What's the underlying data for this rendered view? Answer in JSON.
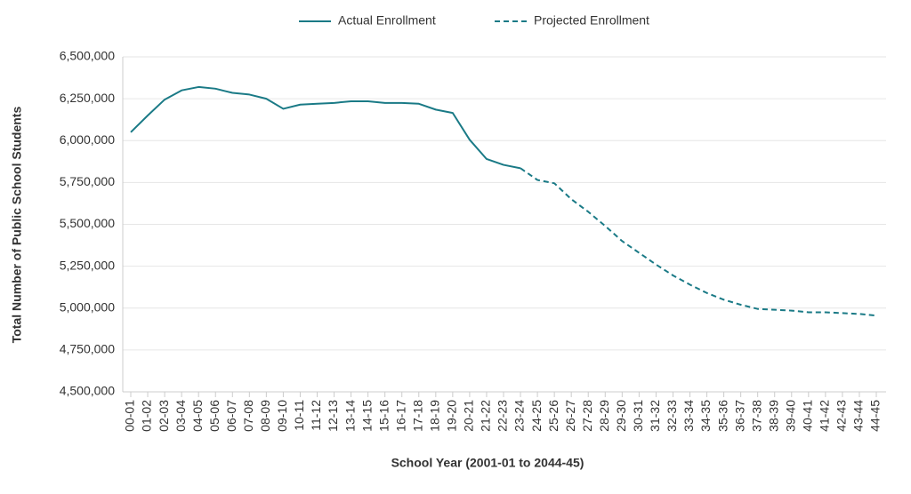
{
  "chart_data": {
    "type": "line",
    "x_label": "School Year (2001-01 to 2044-45)",
    "y_label": "Total Number of Public School Students",
    "categories": [
      "00-01",
      "01-02",
      "02-03",
      "03-04",
      "04-05",
      "05-06",
      "06-07",
      "07-08",
      "08-09",
      "09-10",
      "10-11",
      "11-12",
      "12-13",
      "13-14",
      "14-15",
      "15-16",
      "16-17",
      "17-18",
      "18-19",
      "19-20",
      "20-21",
      "21-22",
      "22-23",
      "23-24",
      "24-25",
      "25-26",
      "26-27",
      "27-28",
      "28-29",
      "29-30",
      "30-31",
      "31-32",
      "32-33",
      "33-34",
      "34-35",
      "35-36",
      "36-37",
      "37-38",
      "38-39",
      "39-40",
      "40-41",
      "41-42",
      "42-43",
      "43-44",
      "44-45"
    ],
    "series": [
      {
        "name": "Actual Enrollment",
        "color": "#1a7a86",
        "dashed": false,
        "values": [
          6050000,
          6150000,
          6245000,
          6300000,
          6320000,
          6310000,
          6285000,
          6275000,
          6250000,
          6190000,
          6215000,
          6220000,
          6225000,
          6235000,
          6235000,
          6225000,
          6225000,
          6220000,
          6185000,
          6165000,
          6005000,
          5890000,
          5855000,
          5835000,
          null,
          null,
          null,
          null,
          null,
          null,
          null,
          null,
          null,
          null,
          null,
          null,
          null,
          null,
          null,
          null,
          null,
          null,
          null,
          null,
          null
        ]
      },
      {
        "name": "Projected Enrollment",
        "color": "#1a7a86",
        "dashed": true,
        "values": [
          null,
          null,
          null,
          null,
          null,
          null,
          null,
          null,
          null,
          null,
          null,
          null,
          null,
          null,
          null,
          null,
          null,
          null,
          null,
          null,
          null,
          null,
          null,
          5835000,
          5765000,
          5745000,
          5650000,
          5575000,
          5490000,
          5400000,
          5330000,
          5260000,
          5195000,
          5140000,
          5090000,
          5050000,
          5020000,
          4995000,
          4990000,
          4985000,
          4975000,
          4975000,
          4970000,
          4965000,
          4955000
        ]
      }
    ],
    "ylim": [
      4500000,
      6500000
    ],
    "yticks": [
      {
        "value": 4500000,
        "label": "4,500,000"
      },
      {
        "value": 4750000,
        "label": "4,750,000"
      },
      {
        "value": 5000000,
        "label": "5,000,000"
      },
      {
        "value": 5250000,
        "label": "5,250,000"
      },
      {
        "value": 5500000,
        "label": "5,500,000"
      },
      {
        "value": 5750000,
        "label": "5,750,000"
      },
      {
        "value": 6000000,
        "label": "6,000,000"
      },
      {
        "value": 6250000,
        "label": "6,250,000"
      },
      {
        "value": 6500000,
        "label": "6,500,000"
      }
    ],
    "grid": true
  }
}
